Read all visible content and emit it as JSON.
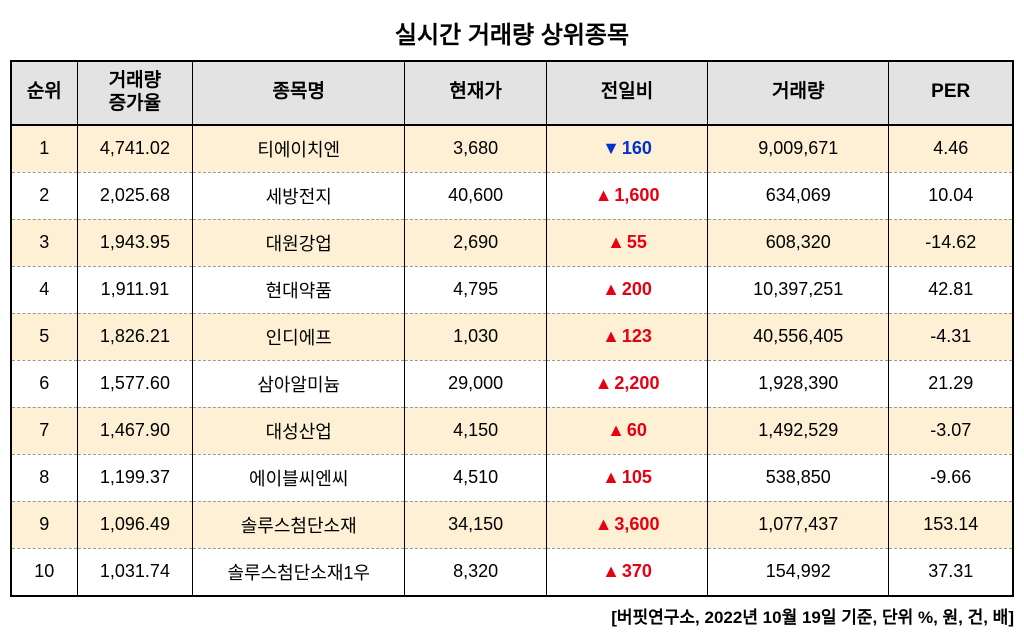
{
  "title": "실시간 거래량 상위종목",
  "columns": [
    "순위",
    "거래량\n증가율",
    "종목명",
    "현재가",
    "전일비",
    "거래량",
    "PER"
  ],
  "rows": [
    {
      "rank": "1",
      "rate": "4,741.02",
      "name": "티에이치엔",
      "price": "3,680",
      "dir": "down",
      "chg": "160",
      "volume": "9,009,671",
      "per": "4.46"
    },
    {
      "rank": "2",
      "rate": "2,025.68",
      "name": "세방전지",
      "price": "40,600",
      "dir": "up",
      "chg": "1,600",
      "volume": "634,069",
      "per": "10.04"
    },
    {
      "rank": "3",
      "rate": "1,943.95",
      "name": "대원강업",
      "price": "2,690",
      "dir": "up",
      "chg": "55",
      "volume": "608,320",
      "per": "-14.62"
    },
    {
      "rank": "4",
      "rate": "1,911.91",
      "name": "현대약품",
      "price": "4,795",
      "dir": "up",
      "chg": "200",
      "volume": "10,397,251",
      "per": "42.81"
    },
    {
      "rank": "5",
      "rate": "1,826.21",
      "name": "인디에프",
      "price": "1,030",
      "dir": "up",
      "chg": "123",
      "volume": "40,556,405",
      "per": "-4.31"
    },
    {
      "rank": "6",
      "rate": "1,577.60",
      "name": "삼아알미늄",
      "price": "29,000",
      "dir": "up",
      "chg": "2,200",
      "volume": "1,928,390",
      "per": "21.29"
    },
    {
      "rank": "7",
      "rate": "1,467.90",
      "name": "대성산업",
      "price": "4,150",
      "dir": "up",
      "chg": "60",
      "volume": "1,492,529",
      "per": "-3.07"
    },
    {
      "rank": "8",
      "rate": "1,199.37",
      "name": "에이블씨엔씨",
      "price": "4,510",
      "dir": "up",
      "chg": "105",
      "volume": "538,850",
      "per": "-9.66"
    },
    {
      "rank": "9",
      "rate": "1,096.49",
      "name": "솔루스첨단소재",
      "price": "34,150",
      "dir": "up",
      "chg": "3,600",
      "volume": "1,077,437",
      "per": "153.14"
    },
    {
      "rank": "10",
      "rate": "1,031.74",
      "name": "솔루스첨단소재1우",
      "price": "8,320",
      "dir": "up",
      "chg": "370",
      "volume": "154,992",
      "per": "37.31"
    }
  ],
  "arrows": {
    "up": "▲",
    "down": "▼"
  },
  "colors": {
    "up": "#e60012",
    "down": "#0033cc",
    "header_bg": "#e3e3e3",
    "odd_bg": "#fdf0d5",
    "even_bg": "#ffffff",
    "border": "#000000"
  },
  "footnote": "[버핏연구소, 2022년 10월 19일 기준, 단위 %, 원, 건, 배]"
}
